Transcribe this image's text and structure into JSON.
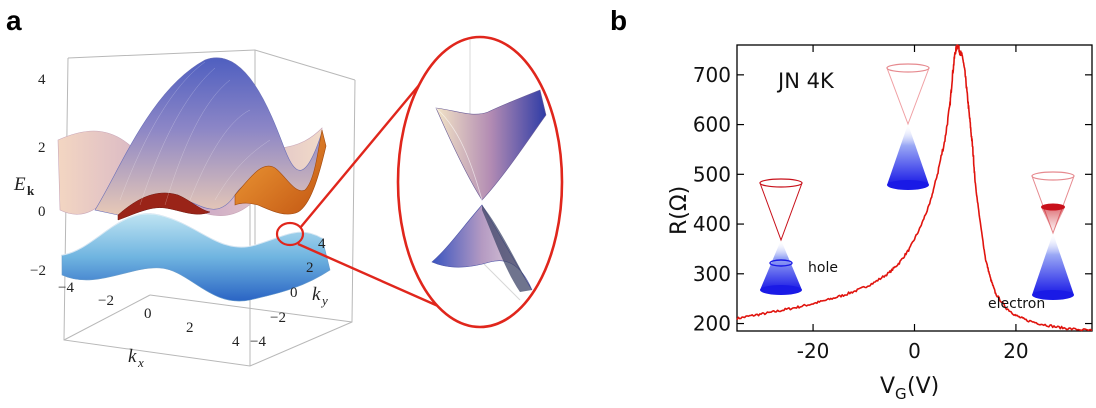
{
  "panel_a_label": "a",
  "panel_b_label": "b",
  "colors": {
    "zoom_circle": "#e0261c",
    "trace": "#e0140e",
    "cone_blue": "#1a1ae6",
    "cone_red": "#c8101a"
  },
  "chart_data": [
    {
      "type": "surface3d",
      "zlabel_main": "E",
      "zlabel_sub": "k",
      "xlabel_main": "k",
      "xlabel_sub": "x",
      "ylabel_main": "k",
      "ylabel_sub": "y",
      "z_ticks": [
        "4",
        "2",
        "0",
        "−2"
      ],
      "x_ticks": [
        "−4",
        "−2",
        "0",
        "2",
        "4"
      ],
      "y_ticks": [
        "4",
        "2",
        "0",
        "−2",
        "−4"
      ],
      "xlim": [
        -4,
        4
      ],
      "ylim": [
        -4,
        4
      ],
      "zlim": [
        -2,
        4
      ],
      "inset": "zoomed Dirac cone at K point"
    },
    {
      "type": "line",
      "annotation": "JN 4K",
      "xlabel_main": "V",
      "xlabel_sub": "G",
      "xlabel_unit": "(V)",
      "ylabel": "R(Ω)",
      "xlim": [
        -35,
        35
      ],
      "ylim": [
        185,
        760
      ],
      "x_ticks": [
        "-20",
        "0",
        "20"
      ],
      "x_tick_values": [
        -20,
        0,
        20
      ],
      "y_ticks": [
        "700",
        "600",
        "500",
        "400",
        "300",
        "200"
      ],
      "y_tick_values": [
        700,
        600,
        500,
        400,
        300,
        200
      ],
      "label_hole": "hole",
      "label_electron": "electron",
      "series": [
        {
          "x": [
            -35,
            -32,
            -29,
            -26,
            -23,
            -20,
            -17,
            -14,
            -11,
            -8,
            -5,
            -3,
            -1,
            1,
            3,
            4.5,
            6,
            7,
            7.5,
            8,
            8.5,
            9,
            9.5,
            10,
            10.5,
            11,
            11.5,
            12,
            13,
            14,
            15,
            16,
            18,
            20,
            22,
            25,
            28,
            31,
            35
          ],
          "y": [
            210,
            216,
            221,
            227,
            233,
            240,
            248,
            257,
            268,
            282,
            302,
            322,
            350,
            390,
            440,
            500,
            570,
            640,
            700,
            745,
            760,
            745,
            735,
            700,
            650,
            600,
            550,
            480,
            400,
            330,
            290,
            260,
            232,
            216,
            207,
            199,
            193,
            189,
            186
          ]
        }
      ]
    }
  ]
}
